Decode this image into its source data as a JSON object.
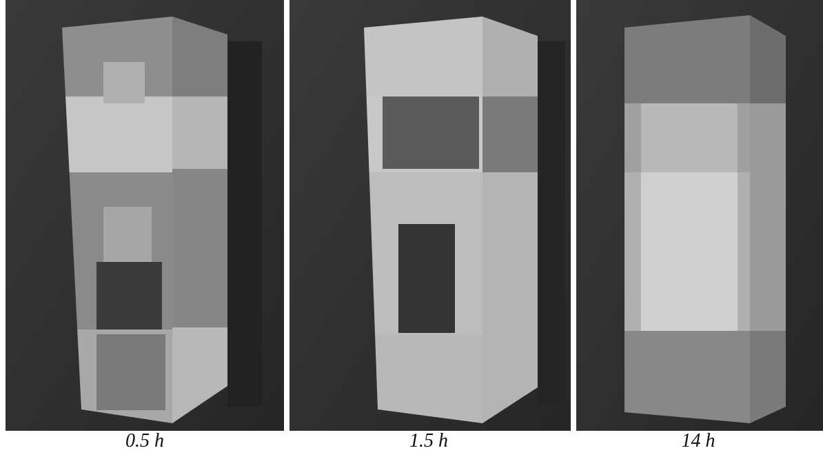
{
  "panels": [
    {
      "caption": "0.5 h"
    },
    {
      "caption": "1.5 h"
    },
    {
      "caption": "14 h"
    }
  ]
}
